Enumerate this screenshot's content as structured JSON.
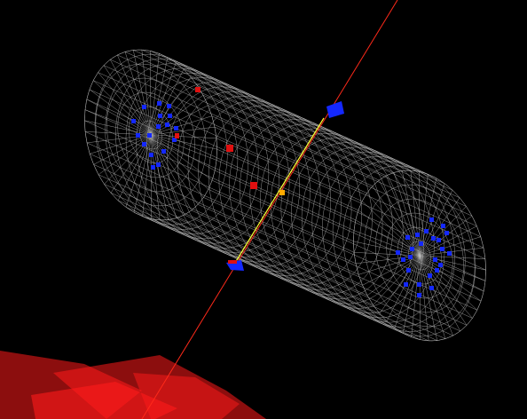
{
  "scene": {
    "description_visible_text": "",
    "colors": {
      "background": "#000000",
      "mesh": "#bdbdbd",
      "beam_line": "#ff2a1a",
      "track": "#ffff33",
      "vertex": "#ffaa00",
      "blue_hits": "#1428ff",
      "red_hits": "#e01010",
      "calorimeter_tower": "#ff1a1a"
    },
    "icons": {
      "detector": "cylinder-mesh-icon",
      "track": "track-line-icon"
    }
  }
}
